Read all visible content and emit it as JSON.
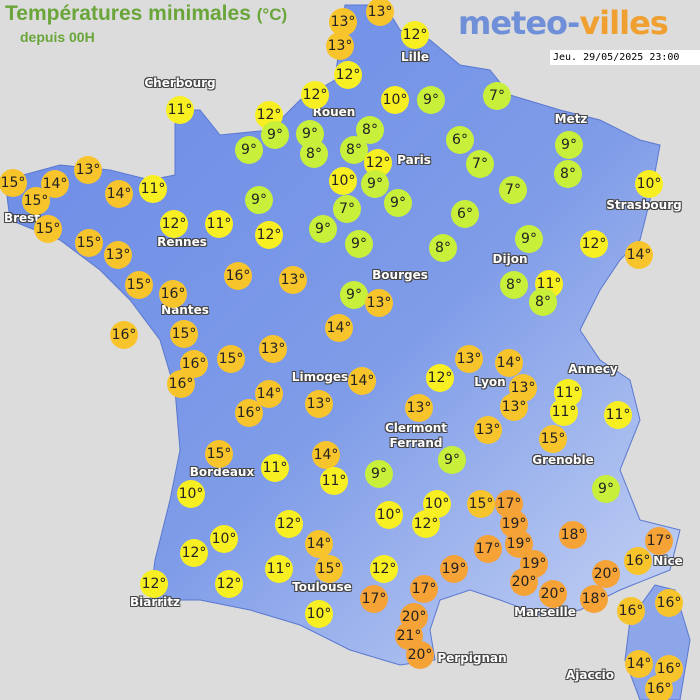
{
  "header": {
    "title": "Températures minimales",
    "unit": "(°C)",
    "subtitle": "depuis 00H",
    "logo": "meteo-villes.com",
    "datetime": "Jeu. 29/05/2025 23:00"
  },
  "colors": {
    "cold": "#c8ef3a",
    "mild": "#f8ef22",
    "warm": "#f8c42c",
    "hot": "#f5a236",
    "land": "#6d8de6",
    "background": "#dcdcdc",
    "title": "#6aa53a"
  },
  "cities": [
    "Cherbourg",
    "Lille",
    "Rouen",
    "Metz",
    "Paris",
    "Brest",
    "Strasbourg",
    "Rennes",
    "Dijon",
    "Bourges",
    "Nantes",
    "Annecy",
    "Limoges",
    "Lyon",
    "Clermont Ferrand",
    "Grenoble",
    "Bordeaux",
    "Nice",
    "Toulouse",
    "Marseille",
    "Biarritz",
    "Perpignan",
    "Ajaccio"
  ],
  "temperatures": [
    13,
    13,
    13,
    12,
    12,
    11,
    12,
    12,
    9,
    10,
    9,
    7,
    9,
    8,
    8,
    8,
    12,
    6,
    7,
    9,
    8,
    9,
    10,
    9,
    9,
    7,
    10,
    7,
    6,
    15,
    15,
    14,
    13,
    14,
    11,
    9,
    9,
    9,
    8,
    9,
    12,
    14,
    15,
    12,
    11,
    12,
    15,
    13,
    16,
    13,
    15,
    16,
    9,
    13,
    8,
    11,
    8,
    16,
    15,
    14,
    16,
    15,
    13,
    16,
    13,
    14,
    13,
    13,
    11,
    11,
    11,
    14,
    12,
    14,
    16,
    13,
    13,
    13,
    15,
    15,
    14,
    11,
    11,
    9,
    9,
    9,
    10,
    10,
    15,
    17,
    12,
    10,
    12,
    19,
    18,
    17,
    10,
    14,
    17,
    19,
    12,
    12,
    12,
    11,
    15,
    12,
    19,
    19,
    20,
    16,
    20,
    17,
    17,
    20,
    18,
    10,
    20,
    21,
    20,
    16,
    16,
    14,
    16,
    16
  ],
  "units": {
    "degree": "°"
  }
}
